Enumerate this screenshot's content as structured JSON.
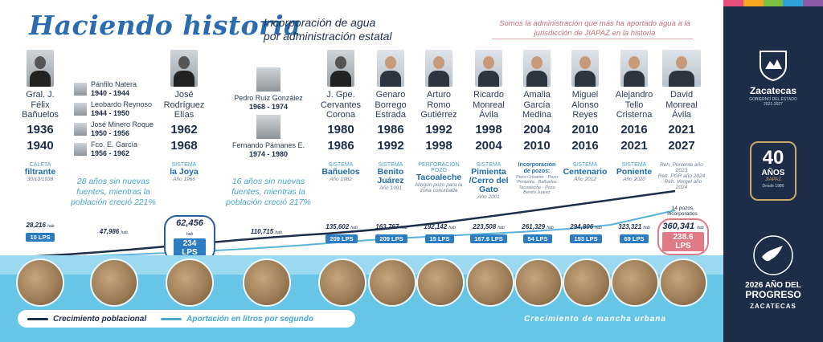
{
  "header": {
    "title": "Haciendo historia",
    "subtitle_1": "Incorporación de agua",
    "subtitle_2": "por administración estatal",
    "note": "Somos la administración que más ha aportado agua a la jurisdicción de JIAPAZ en la historia"
  },
  "columns": [
    {
      "name": "Gral. J. Félix Bañuelos",
      "start": "1936",
      "end": "1940",
      "source_label": "CALETA",
      "source": "filtrante",
      "source_date": "30/10/1938",
      "population": "28,216",
      "flow": "10 LPS",
      "portrait": "bw"
    },
    {
      "name": "José Rodríguez Elías",
      "start": "1962",
      "end": "1968",
      "source_label": "SISTEMA",
      "source": "la Joya",
      "source_date": "Año 1966",
      "population": "62,456",
      "flow": "234 LPS",
      "portrait": "bw"
    },
    {
      "name": "J. Gpe. Cervantes Corona",
      "start": "1980",
      "end": "1986",
      "source_label": "SISTEMA",
      "source": "Bañuelos",
      "source_date": "Año 1982",
      "population": "135,602",
      "flow": "209 LPS",
      "portrait": "bw"
    },
    {
      "name": "Genaro Borrego Estrada",
      "start": "1986",
      "end": "1992",
      "source_label": "SISTEMA",
      "source": "Benito Juárez",
      "source_date": "Año 1991",
      "population": "163,767",
      "flow": "209 LPS",
      "portrait": "color"
    },
    {
      "name": "Arturo Romo Gutiérrez",
      "start": "1992",
      "end": "1998",
      "source_label": "Perforación Pozo",
      "source": "Tacoaleche",
      "source_date": "Ningún pozo para la zona conurbada",
      "population": "192,142",
      "flow": "15 LPS",
      "portrait": "color"
    },
    {
      "name": "Ricardo Monreal Ávila",
      "start": "1998",
      "end": "2004",
      "source_label": "SISTEMA",
      "source": "Pimienta /Cerro del Gato",
      "source_date": "Año 2001",
      "population": "223,508",
      "flow": "167.6 LPS",
      "portrait": "color"
    },
    {
      "name": "Amalia García Medina",
      "start": "2004",
      "end": "2010",
      "source_label": "",
      "source": "Incorporación de pozos:",
      "source_date": "Pozo Crisanto · Pozo Pimienta · Bañuelos Tacoaleche · Pozo Benito Juárez",
      "population": "261,329",
      "flow": "54 LPS",
      "portrait": "color"
    },
    {
      "name": "Miguel Alonso Reyes",
      "start": "2010",
      "end": "2016",
      "source_label": "SISTEMA",
      "source": "Centenario",
      "source_date": "Año 2012",
      "population": "294,806",
      "flow": "193 LPS",
      "portrait": "color"
    },
    {
      "name": "Alejandro Tello Cristerna",
      "start": "2016",
      "end": "2021",
      "source_label": "SISTEMA",
      "source": "Poniente",
      "source_date": "Año 2020",
      "population": "323,321",
      "flow": "69 LPS",
      "portrait": "color"
    },
    {
      "name": "David Monreal Ávila",
      "start": "2021",
      "end": "2027",
      "source_label": "",
      "source": "Reh. Poniente año 2023",
      "source_date": "Reh. PGR año 2024 · Reh. Vergel año 2024",
      "population": "360,341",
      "flow": "238.6 LPS",
      "extra": "14 pozos incorporados",
      "portrait": "color"
    }
  ],
  "gaps": [
    {
      "people": [
        {
          "name": "Pánfilo Natera",
          "years": "1940 - 1944"
        },
        {
          "name": "Leobardo Reynoso",
          "years": "1944 - 1950"
        },
        {
          "name": "José Minero Roque",
          "years": "1950 - 1956"
        },
        {
          "name": "Fco. E. García",
          "years": "1956 - 1962"
        }
      ],
      "text": "28 años sin nuevas fuentes, mientras la población creció 221%",
      "population": "47,986"
    },
    {
      "people": [
        {
          "name": "Pedro Ruíz González",
          "years": "1968 - 1974"
        },
        {
          "name": "Fernando Pámanes E.",
          "years": "1974 - 1980"
        }
      ],
      "text": "16 años sin nuevas fuentes, mientras la población creció 217%",
      "population": "110,715"
    }
  ],
  "units": {
    "population": "hab",
    "population_short": "hab."
  },
  "legend": {
    "population": "Crecimiento poblacional",
    "flow": "Aportación en litros por segundo",
    "urban": "Crecimiento de mancha urbana"
  },
  "sidebar": {
    "state": "Zacatecas",
    "gov": "GOBIERNO DEL ESTADO",
    "term": "2021-2027",
    "anniv_number": "40",
    "anniv_word": "AÑOS",
    "anniv_org": "JIAPAZ",
    "anniv_since": "Desde 1986",
    "year_line_1": "2026 AÑO DEL",
    "year_line_2": "PROGRESO",
    "year_line_3": "ZACATECAS"
  },
  "colors": {
    "accent": "#2b6cb0",
    "navy": "#1d2c47",
    "light_blue": "#67c6e6",
    "highlight": "#e07b86"
  }
}
